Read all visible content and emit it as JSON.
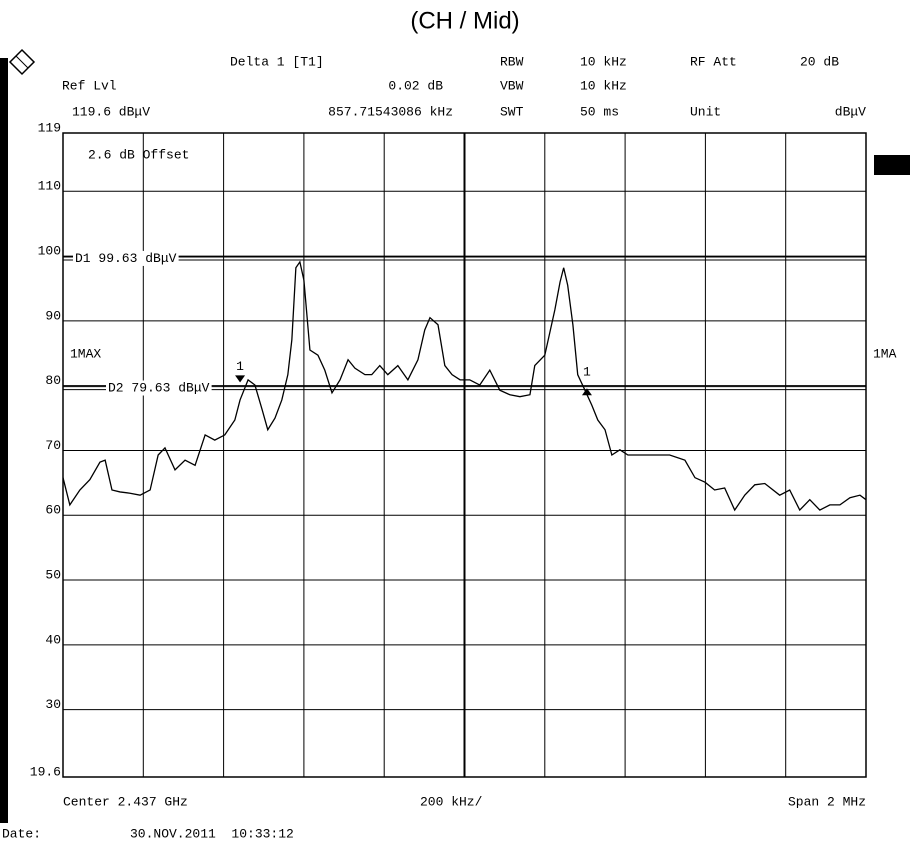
{
  "chart_data": {
    "type": "line",
    "title": "(CH / Mid)",
    "header": {
      "delta": "Delta 1 [T1]",
      "delta_level": "0.02 dB",
      "delta_freq": "857.71543086 kHz",
      "ref_lvl_label": "Ref Lvl",
      "ref_lvl": "119.6 dBμV",
      "rbw_label": "RBW",
      "rbw": "10 kHz",
      "vbw_label": "VBW",
      "vbw": "10 kHz",
      "swt_label": "SWT",
      "swt": "50 ms",
      "rf_att_label": "RF Att",
      "rf_att": "20 dB",
      "unit_label": "Unit",
      "unit": "dBμV"
    },
    "offset_note": "2.6 dB Offset",
    "right_trace_label": "1MA",
    "x_axis": {
      "center": "Center 2.437 GHz",
      "per_div": "200 kHz/",
      "span": "Span 2 MHz"
    },
    "date_label": "Date:",
    "date": "30.NOV.2011  10:33:12",
    "xlim": [
      2.436,
      2.438
    ],
    "ylim": [
      19.6,
      119
    ],
    "yticks": [
      19.6,
      30,
      40,
      50,
      60,
      70,
      80,
      90,
      100,
      110,
      119
    ],
    "grid": true,
    "display_lines": [
      {
        "value": 99.63,
        "label": "D1 99.63 dBμV"
      },
      {
        "value": 79.63,
        "label": "D2 79.63 dBμV"
      }
    ],
    "markers": [
      {
        "label": "1",
        "x": 2.436441,
        "y": 80.5,
        "symbol": "triangle-down"
      },
      {
        "label": "1",
        "x": 2.437305,
        "y": 79.6,
        "symbol": "triangle-up"
      }
    ],
    "x": [
      2.436,
      2.436017,
      2.436042,
      2.436067,
      2.436092,
      2.436105,
      2.436122,
      2.436142,
      2.436167,
      2.436192,
      2.436217,
      2.436237,
      2.436254,
      2.436279,
      2.436304,
      2.436329,
      2.436354,
      2.436378,
      2.436403,
      2.436428,
      2.436441,
      2.436461,
      2.436478,
      2.436496,
      2.43651,
      2.436528,
      2.436545,
      2.43656,
      2.43657,
      2.43658,
      2.43659,
      2.4366,
      2.436615,
      2.436635,
      2.436652,
      2.43667,
      2.43669,
      2.43671,
      2.436727,
      2.436752,
      2.436769,
      2.436789,
      2.436809,
      2.436834,
      2.436859,
      2.436884,
      2.436901,
      2.436914,
      2.436934,
      2.436951,
      2.436969,
      2.436989,
      2.437013,
      2.437038,
      2.437063,
      2.437088,
      2.437113,
      2.437138,
      2.437163,
      2.437175,
      2.4372,
      2.437225,
      2.437238,
      2.437247,
      2.437257,
      2.43727,
      2.437282,
      2.4373,
      2.437317,
      2.437332,
      2.43735,
      2.437367,
      2.437387,
      2.437407,
      2.437437,
      2.437474,
      2.437511,
      2.437549,
      2.437574,
      2.437599,
      2.437623,
      2.437648,
      2.437673,
      2.437698,
      2.437723,
      2.437748,
      2.437785,
      2.43781,
      2.437835,
      2.43786,
      2.437885,
      2.43791,
      2.437935,
      2.43796,
      2.437985,
      2.438
    ],
    "series": [
      {
        "name": "1MAX",
        "color": "#000000",
        "values": [
          65.8,
          61.6,
          63.9,
          65.5,
          68.2,
          68.5,
          63.9,
          63.6,
          63.4,
          63.1,
          63.9,
          69.3,
          70.4,
          67,
          68.5,
          67.7,
          72.4,
          71.6,
          72.4,
          74.7,
          77.8,
          80.9,
          80.1,
          76.3,
          73.2,
          75,
          77.8,
          81.7,
          87.1,
          98.2,
          99.1,
          96.3,
          85.5,
          84.7,
          82.4,
          78.9,
          80.9,
          84,
          82.7,
          81.7,
          81.7,
          83.1,
          81.7,
          83.1,
          80.9,
          84,
          88.6,
          90.5,
          89.4,
          83.1,
          81.7,
          80.9,
          80.9,
          80.1,
          82.4,
          79.3,
          78.6,
          78.3,
          78.6,
          83.1,
          84.7,
          91.7,
          96,
          98.2,
          95.5,
          89.4,
          81.7,
          79.3,
          77,
          74.7,
          73.2,
          69.3,
          70.1,
          69.3,
          69.3,
          69.3,
          69.3,
          68.5,
          65.8,
          65.1,
          63.9,
          64.2,
          60.8,
          63.1,
          64.7,
          64.9,
          63.1,
          63.9,
          60.8,
          62.4,
          60.8,
          61.6,
          61.6,
          62.7,
          63.1,
          62.4
        ]
      }
    ]
  }
}
